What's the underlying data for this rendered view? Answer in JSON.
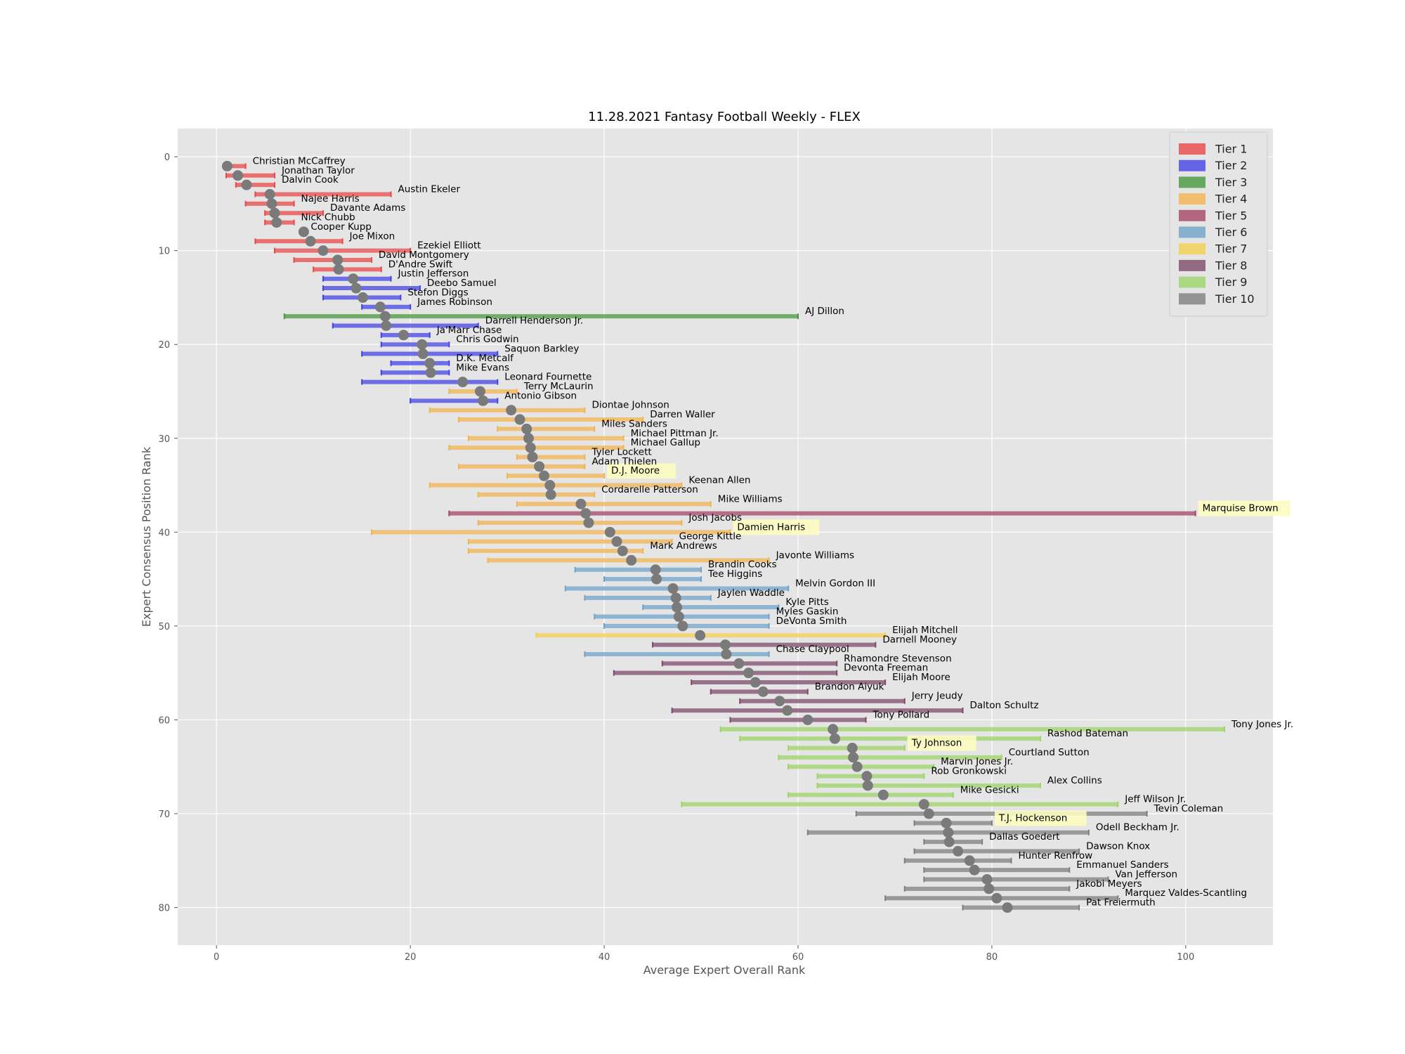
{
  "chart_data": {
    "type": "scatter",
    "title": "11.28.2021 Fantasy Football Weekly - FLEX",
    "xlabel": "Average Expert Overall Rank",
    "ylabel": "Expert Consensus Position Rank",
    "xlim": [
      -4,
      109
    ],
    "ylim": [
      84,
      -3
    ],
    "x_ticks": [
      0,
      20,
      40,
      60,
      80,
      100
    ],
    "y_ticks": [
      0,
      10,
      20,
      30,
      40,
      50,
      60,
      70,
      80
    ],
    "grid": true,
    "legend_position": "top-right",
    "tiers": [
      {
        "name": "Tier 1",
        "color": "#e8484a"
      },
      {
        "name": "Tier 2",
        "color": "#4444e6"
      },
      {
        "name": "Tier 3",
        "color": "#47993f"
      },
      {
        "name": "Tier 4",
        "color": "#f2b450"
      },
      {
        "name": "Tier 5",
        "color": "#a44668"
      },
      {
        "name": "Tier 6",
        "color": "#6fa3c9"
      },
      {
        "name": "Tier 7",
        "color": "#f4cf50"
      },
      {
        "name": "Tier 8",
        "color": "#7e4a6c"
      },
      {
        "name": "Tier 9",
        "color": "#9cd466"
      },
      {
        "name": "Tier 10",
        "color": "#7f7f7f"
      }
    ],
    "players": [
      {
        "name": "Christian McCaffrey",
        "rank": 1,
        "avg": 1.1,
        "min": 1,
        "max": 3,
        "tier": 1
      },
      {
        "name": "Jonathan Taylor",
        "rank": 2,
        "avg": 2.2,
        "min": 1,
        "max": 6,
        "tier": 1
      },
      {
        "name": "Dalvin Cook",
        "rank": 3,
        "avg": 3.1,
        "min": 2,
        "max": 6,
        "tier": 1
      },
      {
        "name": "Austin Ekeler",
        "rank": 4,
        "avg": 5.5,
        "min": 4,
        "max": 18,
        "tier": 1
      },
      {
        "name": "Najee Harris",
        "rank": 5,
        "avg": 5.7,
        "min": 3,
        "max": 8,
        "tier": 1
      },
      {
        "name": "Davante Adams",
        "rank": 6,
        "avg": 6.0,
        "min": 5,
        "max": 11,
        "tier": 1
      },
      {
        "name": "Nick Chubb",
        "rank": 7,
        "avg": 6.2,
        "min": 5,
        "max": 8,
        "tier": 1
      },
      {
        "name": "Cooper Kupp",
        "rank": 8,
        "avg": 9.0,
        "min": 9,
        "max": 9,
        "tier": 1
      },
      {
        "name": "Joe Mixon",
        "rank": 9,
        "avg": 9.7,
        "min": 4,
        "max": 13,
        "tier": 1
      },
      {
        "name": "Ezekiel Elliott",
        "rank": 10,
        "avg": 11.0,
        "min": 6,
        "max": 20,
        "tier": 1
      },
      {
        "name": "David Montgomery",
        "rank": 11,
        "avg": 12.5,
        "min": 8,
        "max": 16,
        "tier": 1
      },
      {
        "name": "D'Andre Swift",
        "rank": 12,
        "avg": 12.6,
        "min": 10,
        "max": 17,
        "tier": 1
      },
      {
        "name": "Justin Jefferson",
        "rank": 13,
        "avg": 14.1,
        "min": 11,
        "max": 18,
        "tier": 2
      },
      {
        "name": "Deebo Samuel",
        "rank": 14,
        "avg": 14.4,
        "min": 11,
        "max": 21,
        "tier": 2
      },
      {
        "name": "Stefon Diggs",
        "rank": 15,
        "avg": 15.1,
        "min": 11,
        "max": 19,
        "tier": 2
      },
      {
        "name": "James Robinson",
        "rank": 16,
        "avg": 16.9,
        "min": 15,
        "max": 20,
        "tier": 2
      },
      {
        "name": "AJ Dillon",
        "rank": 17,
        "avg": 17.4,
        "min": 7,
        "max": 60,
        "tier": 3
      },
      {
        "name": "Darrell Henderson Jr.",
        "rank": 18,
        "avg": 17.5,
        "min": 12,
        "max": 27,
        "tier": 2
      },
      {
        "name": "Ja'Marr Chase",
        "rank": 19,
        "avg": 19.3,
        "min": 17,
        "max": 22,
        "tier": 2
      },
      {
        "name": "Chris Godwin",
        "rank": 20,
        "avg": 21.2,
        "min": 17,
        "max": 24,
        "tier": 2
      },
      {
        "name": "Saquon Barkley",
        "rank": 21,
        "avg": 21.3,
        "min": 15,
        "max": 29,
        "tier": 2
      },
      {
        "name": "D.K. Metcalf",
        "rank": 22,
        "avg": 22.0,
        "min": 18,
        "max": 24,
        "tier": 2
      },
      {
        "name": "Mike Evans",
        "rank": 23,
        "avg": 22.1,
        "min": 17,
        "max": 24,
        "tier": 2
      },
      {
        "name": "Leonard Fournette",
        "rank": 24,
        "avg": 25.4,
        "min": 15,
        "max": 29,
        "tier": 2
      },
      {
        "name": "Terry McLaurin",
        "rank": 25,
        "avg": 27.2,
        "min": 24,
        "max": 31,
        "tier": 4
      },
      {
        "name": "Antonio Gibson",
        "rank": 26,
        "avg": 27.5,
        "min": 20,
        "max": 29,
        "tier": 2
      },
      {
        "name": "Diontae Johnson",
        "rank": 27,
        "avg": 30.4,
        "min": 22,
        "max": 38,
        "tier": 4
      },
      {
        "name": "Darren Waller",
        "rank": 28,
        "avg": 31.3,
        "min": 25,
        "max": 44,
        "tier": 4
      },
      {
        "name": "Miles Sanders",
        "rank": 29,
        "avg": 32.0,
        "min": 29,
        "max": 39,
        "tier": 4
      },
      {
        "name": "Michael Pittman Jr.",
        "rank": 30,
        "avg": 32.2,
        "min": 26,
        "max": 42,
        "tier": 4
      },
      {
        "name": "Michael Gallup",
        "rank": 31,
        "avg": 32.4,
        "min": 24,
        "max": 42,
        "tier": 4
      },
      {
        "name": "Tyler Lockett",
        "rank": 32,
        "avg": 32.6,
        "min": 31,
        "max": 38,
        "tier": 4
      },
      {
        "name": "Adam Thielen",
        "rank": 33,
        "avg": 33.3,
        "min": 25,
        "max": 38,
        "tier": 4
      },
      {
        "name": "D.J. Moore",
        "rank": 34,
        "avg": 33.8,
        "min": 30,
        "max": 40,
        "tier": 4
      },
      {
        "name": "Keenan Allen",
        "rank": 35,
        "avg": 34.4,
        "min": 22,
        "max": 48,
        "tier": 4
      },
      {
        "name": "Cordarelle Patterson",
        "rank": 36,
        "avg": 34.5,
        "min": 27,
        "max": 39,
        "tier": 4
      },
      {
        "name": "Mike Williams",
        "rank": 37,
        "avg": 37.6,
        "min": 31,
        "max": 51,
        "tier": 4
      },
      {
        "name": "Marquise Brown",
        "rank": 38,
        "avg": 38.1,
        "min": 24,
        "max": 101,
        "tier": 5
      },
      {
        "name": "Josh Jacobs",
        "rank": 39,
        "avg": 38.4,
        "min": 27,
        "max": 48,
        "tier": 4
      },
      {
        "name": "Damien Harris",
        "rank": 40,
        "avg": 40.6,
        "min": 16,
        "max": 53,
        "tier": 4
      },
      {
        "name": "George Kittle",
        "rank": 41,
        "avg": 41.3,
        "min": 26,
        "max": 47,
        "tier": 4
      },
      {
        "name": "Mark Andrews",
        "rank": 42,
        "avg": 41.9,
        "min": 26,
        "max": 44,
        "tier": 4
      },
      {
        "name": "Javonte Williams",
        "rank": 43,
        "avg": 42.8,
        "min": 28,
        "max": 57,
        "tier": 4
      },
      {
        "name": "Brandin Cooks",
        "rank": 44,
        "avg": 45.3,
        "min": 37,
        "max": 50,
        "tier": 6
      },
      {
        "name": "Tee Higgins",
        "rank": 45,
        "avg": 45.4,
        "min": 40,
        "max": 50,
        "tier": 6
      },
      {
        "name": "Melvin Gordon III",
        "rank": 46,
        "avg": 47.1,
        "min": 36,
        "max": 59,
        "tier": 6
      },
      {
        "name": "Jaylen Waddle",
        "rank": 47,
        "avg": 47.4,
        "min": 38,
        "max": 51,
        "tier": 6
      },
      {
        "name": "Kyle Pitts",
        "rank": 48,
        "avg": 47.5,
        "min": 44,
        "max": 58,
        "tier": 6
      },
      {
        "name": "Myles Gaskin",
        "rank": 49,
        "avg": 47.7,
        "min": 39,
        "max": 57,
        "tier": 6
      },
      {
        "name": "DeVonta Smith",
        "rank": 50,
        "avg": 48.1,
        "min": 40,
        "max": 57,
        "tier": 6
      },
      {
        "name": "Elijah Mitchell",
        "rank": 51,
        "avg": 49.9,
        "min": 33,
        "max": 69,
        "tier": 7
      },
      {
        "name": "Darnell Mooney",
        "rank": 52,
        "avg": 52.5,
        "min": 45,
        "max": 68,
        "tier": 8
      },
      {
        "name": "Chase Claypool",
        "rank": 53,
        "avg": 52.6,
        "min": 38,
        "max": 57,
        "tier": 6
      },
      {
        "name": "Rhamondre Stevenson",
        "rank": 54,
        "avg": 53.9,
        "min": 46,
        "max": 64,
        "tier": 8
      },
      {
        "name": "Devonta Freeman",
        "rank": 55,
        "avg": 54.9,
        "min": 41,
        "max": 64,
        "tier": 8
      },
      {
        "name": "Elijah Moore",
        "rank": 56,
        "avg": 55.6,
        "min": 49,
        "max": 69,
        "tier": 8
      },
      {
        "name": "Brandon Aiyuk",
        "rank": 57,
        "avg": 56.4,
        "min": 51,
        "max": 61,
        "tier": 8
      },
      {
        "name": "Jerry Jeudy",
        "rank": 58,
        "avg": 58.1,
        "min": 54,
        "max": 71,
        "tier": 8
      },
      {
        "name": "Dalton Schultz",
        "rank": 59,
        "avg": 58.9,
        "min": 47,
        "max": 77,
        "tier": 8
      },
      {
        "name": "Tony Pollard",
        "rank": 60,
        "avg": 61.0,
        "min": 53,
        "max": 67,
        "tier": 8
      },
      {
        "name": "Tony Jones Jr.",
        "rank": 61,
        "avg": 63.6,
        "min": 52,
        "max": 104,
        "tier": 9
      },
      {
        "name": "Rashod Bateman",
        "rank": 62,
        "avg": 63.8,
        "min": 54,
        "max": 85,
        "tier": 9
      },
      {
        "name": "Ty Johnson",
        "rank": 63,
        "avg": 65.6,
        "min": 59,
        "max": 71,
        "tier": 9
      },
      {
        "name": "Courtland Sutton",
        "rank": 64,
        "avg": 65.7,
        "min": 58,
        "max": 81,
        "tier": 9
      },
      {
        "name": "Marvin Jones Jr.",
        "rank": 65,
        "avg": 66.1,
        "min": 59,
        "max": 74,
        "tier": 9
      },
      {
        "name": "Rob Gronkowski",
        "rank": 66,
        "avg": 67.1,
        "min": 62,
        "max": 73,
        "tier": 9
      },
      {
        "name": "Alex Collins",
        "rank": 67,
        "avg": 67.2,
        "min": 62,
        "max": 85,
        "tier": 9
      },
      {
        "name": "Mike Gesicki",
        "rank": 68,
        "avg": 68.8,
        "min": 59,
        "max": 76,
        "tier": 9
      },
      {
        "name": "Jeff Wilson Jr.",
        "rank": 69,
        "avg": 73.0,
        "min": 48,
        "max": 93,
        "tier": 9
      },
      {
        "name": "Tevin Coleman",
        "rank": 70,
        "avg": 73.5,
        "min": 66,
        "max": 96,
        "tier": 10
      },
      {
        "name": "T.J. Hockenson",
        "rank": 71,
        "avg": 75.3,
        "min": 72,
        "max": 80,
        "tier": 10
      },
      {
        "name": "Odell Beckham Jr.",
        "rank": 72,
        "avg": 75.5,
        "min": 61,
        "max": 90,
        "tier": 10
      },
      {
        "name": "Dallas Goedert",
        "rank": 73,
        "avg": 75.6,
        "min": 73,
        "max": 79,
        "tier": 10
      },
      {
        "name": "Dawson Knox",
        "rank": 74,
        "avg": 76.5,
        "min": 72,
        "max": 89,
        "tier": 10
      },
      {
        "name": "Hunter Renfrow",
        "rank": 75,
        "avg": 77.7,
        "min": 71,
        "max": 82,
        "tier": 10
      },
      {
        "name": "Emmanuel Sanders",
        "rank": 76,
        "avg": 78.2,
        "min": 73,
        "max": 88,
        "tier": 10
      },
      {
        "name": "Van Jefferson",
        "rank": 77,
        "avg": 79.5,
        "min": 73,
        "max": 92,
        "tier": 10
      },
      {
        "name": "Jakobi Meyers",
        "rank": 78,
        "avg": 79.7,
        "min": 71,
        "max": 88,
        "tier": 10
      },
      {
        "name": "Marquez Valdes-Scantling",
        "rank": 79,
        "avg": 80.5,
        "min": 69,
        "max": 93,
        "tier": 10
      },
      {
        "name": "Pat Freiermuth",
        "rank": 80,
        "avg": 81.6,
        "min": 77,
        "max": 89,
        "tier": 10
      }
    ],
    "highlighted": [
      "D.J. Moore",
      "Marquise Brown",
      "Damien Harris",
      "Ty Johnson",
      "T.J. Hockenson"
    ],
    "highlight_color": "#fdfcc0",
    "marker_color": "#7a7a7a",
    "plot_background": "#e5e5e5"
  }
}
